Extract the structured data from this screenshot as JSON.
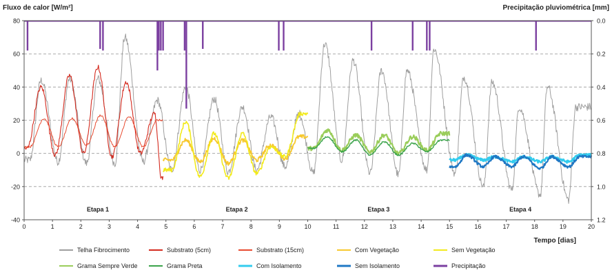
{
  "chart_data": {
    "type": "line",
    "left_axis_label": "Fluxo de calor [W/m²]",
    "right_axis_label": "Precipitação pluviométrica  [mm]",
    "xlabel": "Tempo [dias]",
    "xlim": [
      0,
      20
    ],
    "ylim_left": [
      -40,
      80
    ],
    "ylim_right": [
      1.2,
      0.0
    ],
    "x_ticks": [
      "0",
      "1",
      "2",
      "3",
      "4",
      "5",
      "6",
      "7",
      "8",
      "9",
      "10",
      "11",
      "12",
      "13",
      "14",
      "15",
      "16",
      "17",
      "18",
      "19",
      "20"
    ],
    "y_ticks_left": [
      "-40",
      "-20",
      "0",
      "20",
      "40",
      "60",
      "80"
    ],
    "y_ticks_right": [
      "1.2",
      "1.0",
      "0.8",
      "0.6",
      "0.4",
      "0.2",
      "0.0"
    ],
    "grid": "dashed horizontal",
    "stages": [
      {
        "label": "Etapa 1",
        "x": 2.6
      },
      {
        "label": "Etapa 2",
        "x": 7.5
      },
      {
        "label": "Etapa 3",
        "x": 12.5
      },
      {
        "label": "Etapa 4",
        "x": 17.5
      }
    ],
    "series": [
      {
        "name": "Telha Fibrocimento",
        "color": "#9e9e9e",
        "x_range": [
          0,
          20
        ],
        "peaks": [
          [
            0.6,
            44
          ],
          [
            1.6,
            45
          ],
          [
            2.6,
            45
          ],
          [
            3.55,
            70
          ],
          [
            4.7,
            32
          ],
          [
            5.7,
            40
          ],
          [
            6.7,
            33
          ],
          [
            7.7,
            28
          ],
          [
            8.7,
            22
          ],
          [
            9.7,
            24
          ],
          [
            10.6,
            66
          ],
          [
            11.6,
            56
          ],
          [
            12.6,
            50
          ],
          [
            13.5,
            50
          ],
          [
            14.45,
            63
          ],
          [
            15.5,
            46
          ],
          [
            16.5,
            43
          ],
          [
            17.45,
            28
          ],
          [
            18.45,
            40
          ],
          [
            19.45,
            28
          ]
        ],
        "troughs": [
          [
            0.2,
            -4
          ],
          [
            1.2,
            -5
          ],
          [
            2.2,
            -6
          ],
          [
            3.2,
            -6
          ],
          [
            4.2,
            -5
          ],
          [
            5.2,
            -10
          ],
          [
            6.2,
            -10
          ],
          [
            7.2,
            -11
          ],
          [
            8.2,
            -10
          ],
          [
            9.2,
            -8
          ],
          [
            10.2,
            -12
          ],
          [
            11.2,
            -4
          ],
          [
            12.2,
            -12
          ],
          [
            13.2,
            -13
          ],
          [
            14.2,
            -10
          ],
          [
            15.2,
            -12
          ],
          [
            16.2,
            -20
          ],
          [
            17.2,
            -22
          ],
          [
            18.2,
            -25
          ],
          [
            19.2,
            -28
          ]
        ]
      },
      {
        "name": "Substrato (5cm)",
        "color": "#d42a1e",
        "x_range": [
          0,
          4.9
        ],
        "peaks": [
          [
            0.6,
            40
          ],
          [
            1.6,
            47
          ],
          [
            2.6,
            52
          ],
          [
            3.6,
            43
          ],
          [
            4.6,
            24
          ]
        ],
        "troughs": [
          [
            0.1,
            3
          ],
          [
            1.1,
            -1
          ],
          [
            2.1,
            0
          ],
          [
            3.1,
            -2
          ],
          [
            4.1,
            0
          ],
          [
            4.85,
            -15
          ]
        ]
      },
      {
        "name": "Substrato (15cm)",
        "color": "#e84a2f",
        "x_range": [
          0,
          4.9
        ],
        "peaks": [
          [
            0.7,
            21
          ],
          [
            1.7,
            21
          ],
          [
            2.7,
            23
          ],
          [
            3.7,
            22
          ],
          [
            4.7,
            20
          ]
        ],
        "troughs": [
          [
            0.2,
            4
          ],
          [
            1.2,
            4
          ],
          [
            2.2,
            5
          ],
          [
            3.2,
            4
          ],
          [
            4.2,
            4
          ]
        ]
      },
      {
        "name": "Com Vegetação",
        "color": "#f7c82e",
        "x_range": [
          4.9,
          10
        ],
        "peaks": [
          [
            5.7,
            8
          ],
          [
            6.7,
            9
          ],
          [
            7.7,
            8
          ],
          [
            8.7,
            5
          ],
          [
            9.7,
            10
          ]
        ],
        "troughs": [
          [
            5.2,
            -4
          ],
          [
            6.2,
            -5
          ],
          [
            7.2,
            -6
          ],
          [
            8.2,
            -4
          ],
          [
            9.2,
            -3
          ]
        ]
      },
      {
        "name": "Sem Vegetação",
        "color": "#f2ea1c",
        "x_range": [
          4.9,
          10
        ],
        "peaks": [
          [
            5.7,
            19
          ],
          [
            6.7,
            12
          ],
          [
            7.7,
            12
          ],
          [
            8.7,
            4
          ],
          [
            9.75,
            24
          ]
        ],
        "troughs": [
          [
            5.2,
            -10
          ],
          [
            6.2,
            -14
          ],
          [
            7.2,
            -15
          ],
          [
            8.2,
            -12
          ],
          [
            9.2,
            -2
          ]
        ]
      },
      {
        "name": "Grama Sempre Verde",
        "color": "#9acd5a",
        "x_range": [
          10,
          15
        ],
        "peaks": [
          [
            10.7,
            14
          ],
          [
            11.7,
            11
          ],
          [
            12.7,
            11
          ],
          [
            13.7,
            10
          ],
          [
            14.7,
            12
          ]
        ],
        "troughs": [
          [
            10.2,
            3
          ],
          [
            11.2,
            2
          ],
          [
            12.2,
            1
          ],
          [
            13.2,
            0
          ],
          [
            14.2,
            2
          ]
        ]
      },
      {
        "name": "Grama Preta",
        "color": "#3aa34a",
        "x_range": [
          10,
          15
        ],
        "peaks": [
          [
            10.7,
            10
          ],
          [
            11.7,
            8
          ],
          [
            12.7,
            7
          ],
          [
            13.7,
            6
          ],
          [
            14.7,
            8
          ]
        ],
        "troughs": [
          [
            10.2,
            3
          ],
          [
            11.2,
            1
          ],
          [
            12.2,
            -1
          ],
          [
            13.2,
            -1
          ],
          [
            14.2,
            1
          ]
        ]
      },
      {
        "name": "Com Isolamento",
        "color": "#33ccee",
        "x_range": [
          15,
          20
        ],
        "peaks": [
          [
            15.6,
            -1
          ],
          [
            16.6,
            -2
          ],
          [
            17.6,
            -2
          ],
          [
            18.6,
            -2
          ],
          [
            19.6,
            -1
          ]
        ],
        "troughs": [
          [
            15.2,
            -4
          ],
          [
            16.2,
            -4
          ],
          [
            17.2,
            -5
          ],
          [
            18.2,
            -5
          ],
          [
            19.2,
            -5
          ]
        ]
      },
      {
        "name": "Sem Isolamento",
        "color": "#1f78c4",
        "x_range": [
          15,
          20
        ],
        "peaks": [
          [
            15.6,
            -1
          ],
          [
            16.6,
            -2
          ],
          [
            17.6,
            -2
          ],
          [
            18.6,
            -2
          ],
          [
            19.6,
            -2
          ]
        ],
        "troughs": [
          [
            15.2,
            -8
          ],
          [
            16.2,
            -8
          ],
          [
            17.2,
            -8
          ],
          [
            18.2,
            -9
          ],
          [
            19.2,
            -8
          ]
        ]
      }
    ],
    "precipitation": {
      "name": "Precipitação",
      "color": "#7b3fa0",
      "events": [
        [
          0.12,
          0.18
        ],
        [
          2.68,
          0.17
        ],
        [
          2.78,
          0.18
        ],
        [
          4.7,
          0.3
        ],
        [
          4.75,
          0.18
        ],
        [
          4.82,
          0.18
        ],
        [
          4.9,
          0.18
        ],
        [
          5.66,
          0.18
        ],
        [
          5.72,
          0.53
        ],
        [
          6.3,
          0.17
        ],
        [
          8.98,
          0.18
        ],
        [
          9.15,
          0.18
        ],
        [
          12.25,
          0.18
        ],
        [
          13.7,
          0.18
        ],
        [
          14.2,
          0.18
        ],
        [
          14.3,
          0.18
        ],
        [
          18.05,
          0.18
        ]
      ]
    }
  }
}
